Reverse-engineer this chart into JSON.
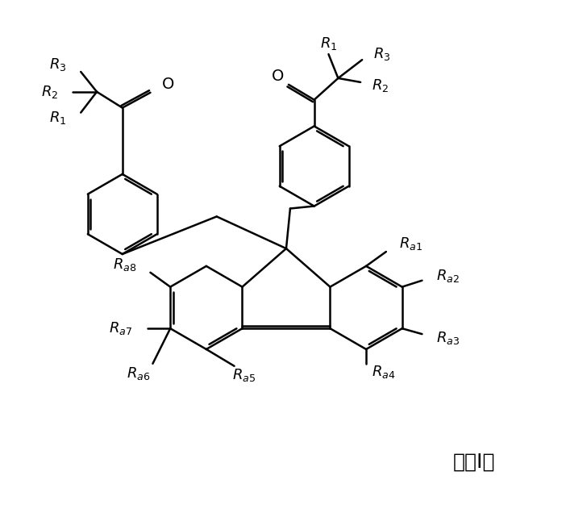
{
  "background": "#ffffff",
  "figsize": [
    7.02,
    6.31
  ],
  "dpi": 100,
  "formula_label": "式（I）",
  "bond_color": "#000000",
  "text_color": "#000000",
  "line_width": 1.8,
  "font_size": 13
}
